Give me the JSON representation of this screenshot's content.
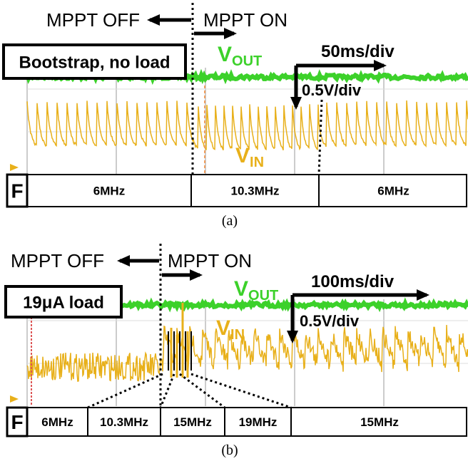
{
  "panels": [
    {
      "mode_off": "MPPT OFF",
      "mode_on": "MPPT ON",
      "condition": "Bootstrap, no load",
      "vout": {
        "main": "V",
        "sub": "OUT"
      },
      "vin": {
        "main": "V",
        "sub": "IN"
      },
      "time_div": "50ms/div",
      "volt_div": "0.5V/div",
      "freq_label": "F",
      "freq_cells": [
        "6MHz",
        "10.3MHz",
        "6MHz"
      ],
      "caption": "(a)"
    },
    {
      "mode_off": "MPPT OFF",
      "mode_on": "MPPT ON",
      "condition": "19μA load",
      "vout": {
        "main": "V",
        "sub": "OUT"
      },
      "vin": {
        "main": "V",
        "sub": "IN"
      },
      "time_div": "100ms/div",
      "volt_div": "0.5V/div",
      "freq_label": "F",
      "freq_cells": [
        "6MHz",
        "10.3MHz",
        "15MHz",
        "19MHz",
        "15MHz"
      ],
      "caption": "(b)"
    }
  ]
}
